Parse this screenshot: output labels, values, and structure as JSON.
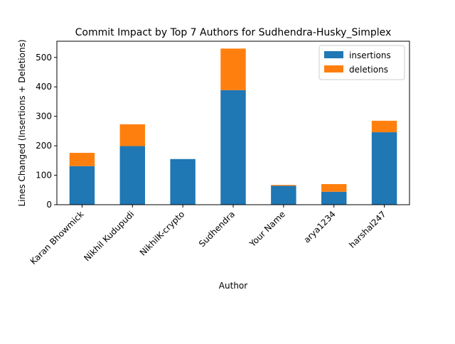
{
  "chart_data": {
    "type": "bar",
    "stacked": true,
    "title": "Commit Impact by Top 7 Authors for Sudhendra-Husky_Simplex",
    "xlabel": "Author",
    "ylabel": "Lines Changed (Insertions + Deletions)",
    "categories": [
      "Karan Bhowmick",
      "Nikhil Kudupudi",
      "NikhilK-crypto",
      "Sudhendra",
      "Your Name",
      "arya1234",
      "harshal247"
    ],
    "series": [
      {
        "name": "insertions",
        "color": "#1f77b4",
        "values": [
          131,
          199,
          155,
          389,
          64,
          44,
          246
        ]
      },
      {
        "name": "deletions",
        "color": "#ff7f0e",
        "values": [
          45,
          74,
          0,
          141,
          3,
          26,
          39
        ]
      }
    ],
    "ylim": [
      0,
      555
    ],
    "yticks": [
      0,
      100,
      200,
      300,
      400,
      500
    ],
    "grid": false,
    "legend_position": "top-right"
  }
}
